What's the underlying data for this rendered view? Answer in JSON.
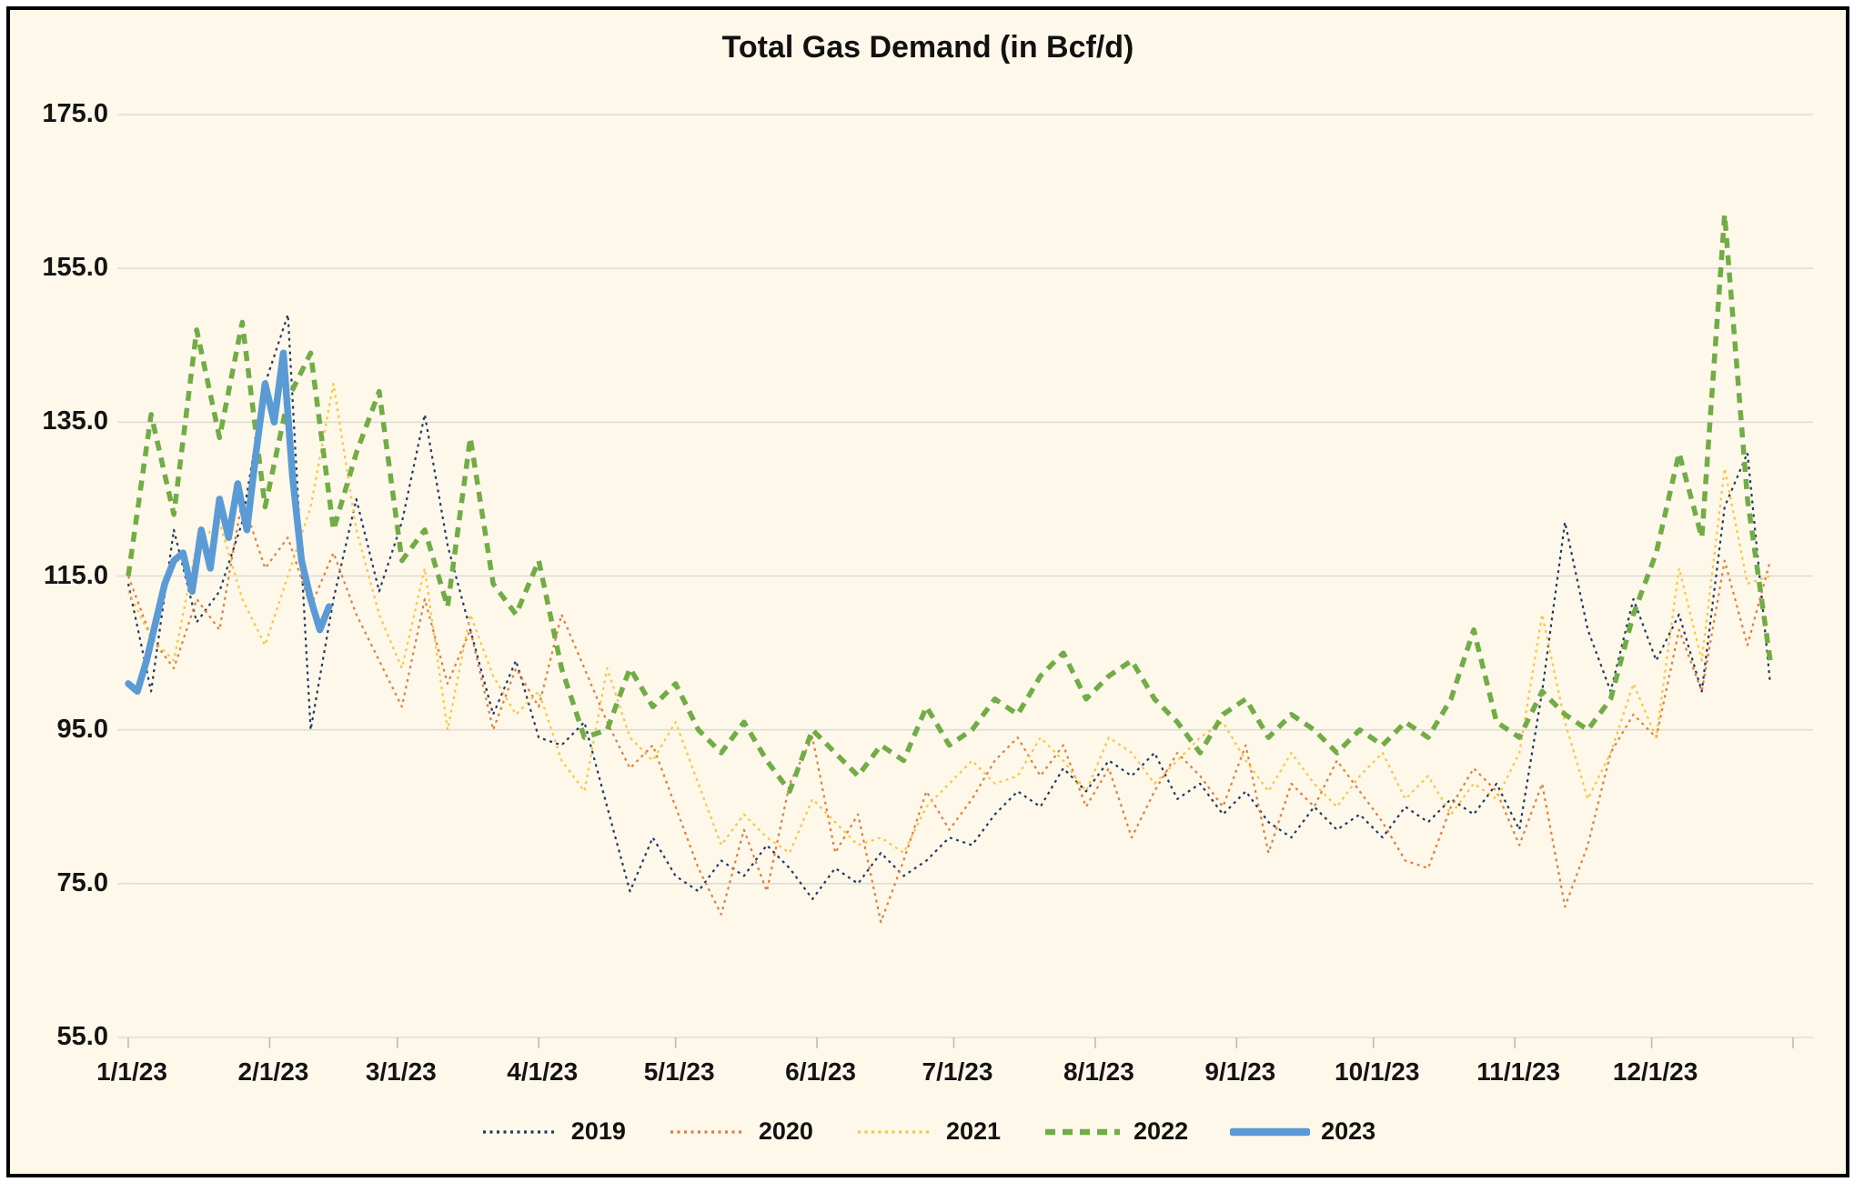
{
  "chart_data": {
    "type": "line",
    "title": "Total Gas Demand (in Bcf/d)",
    "xlabel": "",
    "ylabel": "",
    "ylim": [
      55,
      175
    ],
    "grid": true,
    "legend_position": "bottom",
    "background_color": "#FDF8EA",
    "gridline_color": "#DEDDD5",
    "tick_color": "#BDBCB4",
    "text_color": "#141414",
    "x_unit": "day of year (all years overlaid on 2023 axis)",
    "yticks": [
      {
        "value": 175,
        "label": "175.0"
      },
      {
        "value": 155,
        "label": "155.0"
      },
      {
        "value": 135,
        "label": "135.0"
      },
      {
        "value": 115,
        "label": "115.0"
      },
      {
        "value": 95,
        "label": "95.0"
      },
      {
        "value": 75,
        "label": "75.0"
      },
      {
        "value": 55,
        "label": "55.0"
      }
    ],
    "xticks": [
      {
        "day": 1,
        "label": "1/1/23"
      },
      {
        "day": 32,
        "label": "2/1/23"
      },
      {
        "day": 60,
        "label": "3/1/23"
      },
      {
        "day": 91,
        "label": "4/1/23"
      },
      {
        "day": 121,
        "label": "5/1/23"
      },
      {
        "day": 152,
        "label": "6/1/23"
      },
      {
        "day": 182,
        "label": "7/1/23"
      },
      {
        "day": 213,
        "label": "8/1/23"
      },
      {
        "day": 244,
        "label": "9/1/23"
      },
      {
        "day": 274,
        "label": "10/1/23"
      },
      {
        "day": 305,
        "label": "11/1/23"
      },
      {
        "day": 335,
        "label": "12/1/23"
      }
    ],
    "extra_tick_days": [
      366
    ],
    "series": [
      {
        "name": "2019",
        "color": "#1F3864",
        "line": "dotted",
        "width": 2.2,
        "day_start": 1,
        "day_step": 5,
        "values": [
          114,
          100,
          121,
          109,
          113,
          122,
          140,
          149,
          95,
          112,
          125,
          113,
          122,
          136,
          119,
          108,
          97,
          104,
          94,
          93,
          96,
          85,
          74,
          81,
          76,
          74,
          78,
          76,
          80,
          77,
          73,
          77,
          75,
          79,
          76,
          78,
          81,
          80,
          84,
          87,
          85,
          90,
          87,
          91,
          89,
          92,
          86,
          88,
          84,
          87,
          83,
          81,
          85,
          82,
          84,
          81,
          85,
          83,
          86,
          84,
          88,
          82,
          100,
          122,
          108,
          100,
          112,
          104,
          110,
          100,
          124,
          131,
          101
        ]
      },
      {
        "name": "2020",
        "color": "#E07F3E",
        "line": "dotted",
        "width": 2.2,
        "day_start": 1,
        "day_step": 5,
        "values": [
          115,
          107,
          103,
          112,
          108,
          125,
          116,
          120,
          111,
          118,
          110,
          104,
          98,
          112,
          101,
          108,
          95,
          103,
          98,
          110,
          103,
          96,
          90,
          93,
          85,
          77,
          71,
          82,
          74,
          88,
          94,
          79,
          84,
          70,
          78,
          87,
          82,
          86,
          91,
          94,
          89,
          93,
          85,
          90,
          81,
          87,
          92,
          89,
          85,
          93,
          79,
          88,
          85,
          91,
          87,
          83,
          78,
          77,
          85,
          90,
          87,
          80,
          88,
          72,
          80,
          92,
          97,
          94,
          108,
          100,
          117,
          106,
          117
        ]
      },
      {
        "name": "2021",
        "color": "#FBC540",
        "line": "dotted",
        "width": 2.2,
        "day_start": 1,
        "day_step": 5,
        "values": [
          113,
          107,
          104,
          119,
          122,
          112,
          106,
          115,
          124,
          140,
          121,
          110,
          103,
          116,
          95,
          110,
          102,
          97,
          100,
          91,
          87,
          103,
          94,
          91,
          96,
          88,
          80,
          84,
          81,
          79,
          86,
          83,
          80,
          81,
          79,
          85,
          88,
          91,
          88,
          89,
          94,
          91,
          87,
          94,
          92,
          88,
          91,
          94,
          96,
          91,
          87,
          92,
          88,
          85,
          89,
          92,
          86,
          89,
          84,
          88,
          86,
          92,
          110,
          96,
          86,
          92,
          101,
          94,
          116,
          104,
          129,
          114,
          115
        ]
      },
      {
        "name": "2022",
        "color": "#71AC47",
        "line": "dashed",
        "width": 5.5,
        "day_start": 1,
        "day_step": 5,
        "values": [
          115,
          136,
          123,
          147,
          133,
          148,
          124,
          138,
          144,
          121,
          131,
          139,
          117,
          121,
          111,
          133,
          114,
          110,
          117,
          103,
          94,
          95,
          103,
          98,
          101,
          95,
          92,
          96,
          91,
          87,
          95,
          92,
          89,
          93,
          91,
          98,
          93,
          95,
          99,
          97,
          102,
          105,
          99,
          102,
          104,
          99,
          96,
          92,
          97,
          99,
          94,
          97,
          95,
          92,
          95,
          93,
          96,
          94,
          99,
          108,
          96,
          94,
          100,
          97,
          95,
          99,
          110,
          118,
          131,
          120,
          162,
          125,
          104
        ]
      },
      {
        "name": "2023",
        "color": "#5B9BD5",
        "line": "solid",
        "width": 7.5,
        "day_start": 1,
        "day_step": 2,
        "values": [
          101,
          100,
          104,
          109,
          114,
          117,
          118,
          113,
          121,
          116,
          125,
          120,
          127,
          121,
          131,
          140,
          135,
          144,
          128,
          117,
          112,
          108,
          111
        ]
      }
    ]
  }
}
